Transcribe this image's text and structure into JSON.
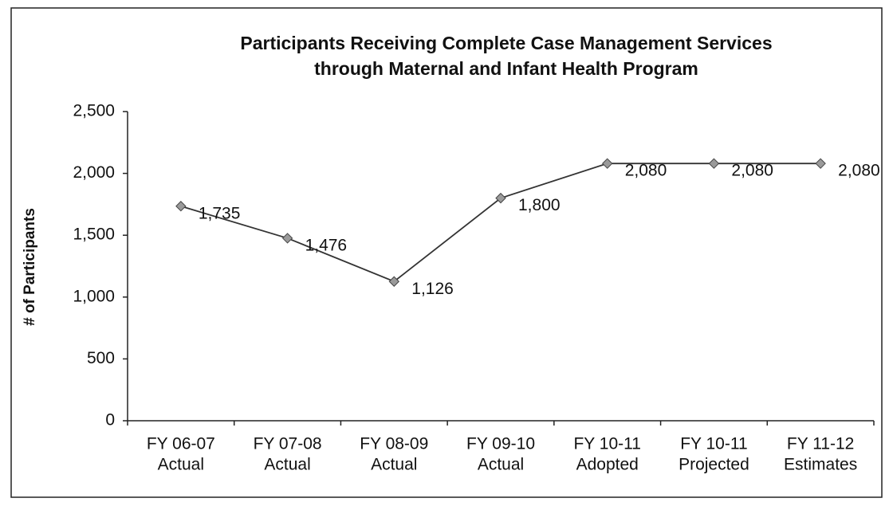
{
  "chart_data": {
    "type": "line",
    "title": [
      "Participants Receiving Complete Case Management Services",
      "through Maternal and Infant Health Program"
    ],
    "y_label": "# of Participants",
    "categories": [
      [
        "FY 06-07",
        "Actual"
      ],
      [
        "FY 07-08",
        "Actual"
      ],
      [
        "FY 08-09",
        "Actual"
      ],
      [
        "FY 09-10",
        "Actual"
      ],
      [
        "FY 10-11",
        "Adopted"
      ],
      [
        "FY 10-11",
        "Projected"
      ],
      [
        "FY 11-12",
        "Estimates"
      ]
    ],
    "series": [
      {
        "name": "Participants",
        "color": "#333333",
        "marker_color": "#9a9a9a",
        "values": [
          1735,
          1476,
          1126,
          1800,
          2080,
          2080,
          2080
        ],
        "value_labels": [
          "1,735",
          "1,476",
          "1,126",
          "1,800",
          "2,080",
          "2,080",
          "2,080"
        ]
      }
    ],
    "ylim": [
      0,
      2500
    ],
    "yticks": [
      0,
      500,
      {
        "value": 1000,
        "label": "1,000"
      },
      {
        "value": 1500,
        "label": "1,500"
      },
      {
        "value": 2000,
        "label": "2,000"
      },
      {
        "value": 2500,
        "label": "2,500"
      }
    ],
    "grid": false
  }
}
